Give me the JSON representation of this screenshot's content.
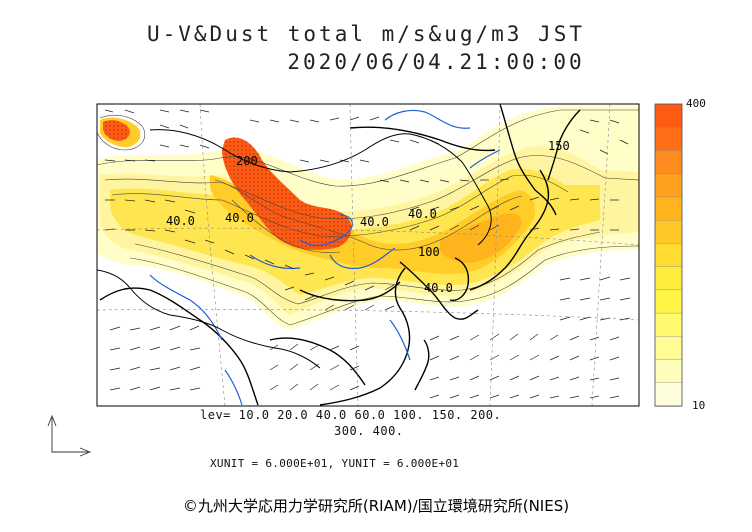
{
  "title": {
    "line1": "U-V&Dust  total  m/s&ug/m3  JST",
    "line2": "2020/06/04.21:00:00"
  },
  "contour_labels": [
    "40.0",
    "40.0",
    "40.0",
    "40.0",
    "100",
    "150",
    "40.0",
    "200"
  ],
  "levels": {
    "line1": "lev=  10.0  20.0  40.0  60.0  100.  150.  200.",
    "line2": "300.  400."
  },
  "units": {
    "text": "XUNIT = 6.000E+01,  YUNIT = 6.000E+01"
  },
  "colorbar": {
    "max_label": "400",
    "min_label": "10",
    "colors": [
      "#ff5a14",
      "#ff6e14",
      "#ff8a1e",
      "#ffa01e",
      "#ffb41e",
      "#ffc828",
      "#ffdc32",
      "#ffec3c",
      "#fff546",
      "#fffa6e",
      "#fffc96",
      "#fffdba",
      "#fffedc"
    ]
  },
  "copyright": "©九州大学応用力学研究所(RIAM)/国立環境研究所(NIES)"
}
